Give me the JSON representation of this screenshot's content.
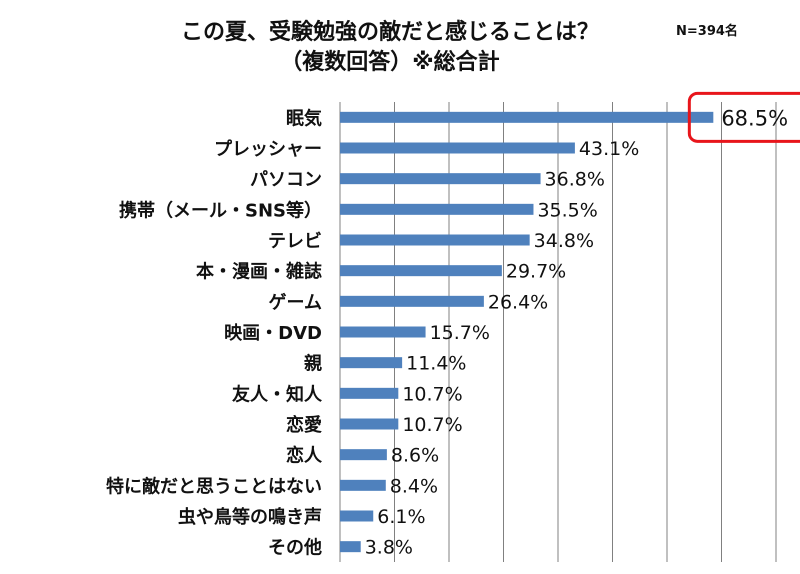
{
  "chart_data": {
    "type": "bar",
    "orientation": "horizontal",
    "title": "この夏、受験勉強の敵だと感じることは？",
    "subtitle": "（複数回答）※総合計",
    "note": "N=394名",
    "categories": [
      "眠気",
      "プレッシャー",
      "パソコン",
      "携帯（メール・SNS等）",
      "テレビ",
      "本・漫画・雑誌",
      "ゲーム",
      "映画・DVD",
      "親",
      "友人・知人",
      "恋愛",
      "恋人",
      "特に敵だと思うことはない",
      "虫や鳥等の鳴き声",
      "その他"
    ],
    "values": [
      68.5,
      43.1,
      36.8,
      35.5,
      34.8,
      29.7,
      26.4,
      15.7,
      11.4,
      10.7,
      10.7,
      8.6,
      8.4,
      6.1,
      3.8
    ],
    "value_labels": [
      "68.5%",
      "43.1%",
      "36.8%",
      "35.5%",
      "34.8%",
      "29.7%",
      "26.4%",
      "15.7%",
      "11.4%",
      "10.7%",
      "10.7%",
      "8.6%",
      "8.4%",
      "6.1%",
      "3.8%"
    ],
    "xlim": [
      0,
      80
    ],
    "grid": true,
    "highlight_index": 0,
    "colors": {
      "bar": "#4f81bd",
      "highlight": "#e8151b",
      "grid": "#808080"
    }
  }
}
